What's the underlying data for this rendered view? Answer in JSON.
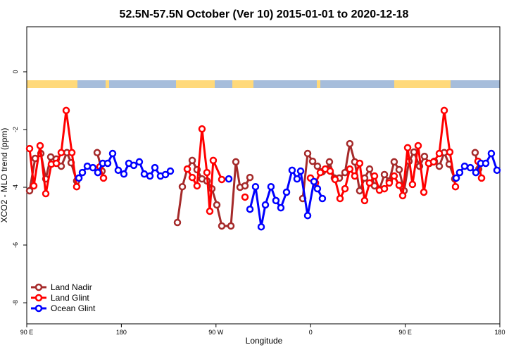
{
  "chart_data": {
    "type": "line",
    "title": "52.5N-57.5N October (Ver 10)   2015-01-01 to 2020-12-18",
    "x_label": "Longitude",
    "y_label": "XCO2 - MLO trend (ppm)",
    "xlim": [
      90,
      540
    ],
    "ylim": [
      -8.73,
      1.56
    ],
    "xticks": [
      {
        "value": 90,
        "label": "90 E"
      },
      180,
      {
        "value": 270,
        "label": "90 W"
      },
      {
        "value": 360,
        "label": "0"
      },
      {
        "value": 450,
        "label": "90 E"
      },
      {
        "value": 540,
        "label": "180"
      }
    ],
    "yticks": [
      -8,
      -6,
      -4,
      -2,
      0
    ],
    "legend": "bottom-left",
    "series": [
      {
        "name": "Land Nadir",
        "color": "#a52a2a",
        "x": [
          92.7,
          98.0,
          103.4,
          108.1,
          112.8,
          118.1,
          122.8,
          128.2,
          132.2,
          137.5,
          null,
          157.0,
          161.6,
          null,
          233.3,
          238.0,
          242.7,
          247.4,
          252.0,
          256.7,
          261.4,
          266.1,
          270.8,
          275.5,
          284.2,
          288.9,
          292.9,
          297.6,
          302.3,
          null,
          352.5,
          357.2,
          361.9,
          366.5,
          371.2,
          375.9,
          377.9,
          382.6,
          387.3,
          392.7,
          397.3,
          402.0,
          406.7,
          411.4,
          416.1,
          420.8,
          425.5,
          430.2,
          434.8,
          439.5,
          444.2,
          448.9,
          453.6,
          458.3,
          463.6,
          468.3,
          473.0,
          477.7,
          482.4,
          487.1,
          491.8,
          497.1,
          null,
          516.5,
          519.9
        ],
        "values": [
          -4.12,
          -3.0,
          -2.83,
          -3.71,
          -2.95,
          -3.02,
          -3.27,
          -2.8,
          -3.15,
          -3.78,
          null,
          -2.8,
          -3.44,
          null,
          -5.22,
          -3.98,
          -3.37,
          -3.07,
          -3.39,
          -3.71,
          -3.78,
          -4.05,
          -4.61,
          -5.34,
          -5.34,
          -3.12,
          -4.0,
          -3.95,
          -3.66,
          null,
          -4.39,
          -2.83,
          -3.1,
          -3.27,
          -3.46,
          -3.37,
          -3.12,
          -3.68,
          -3.68,
          -3.49,
          -2.49,
          -3.12,
          -4.12,
          -3.68,
          -3.37,
          -3.95,
          -4.07,
          -3.56,
          -3.78,
          -3.12,
          -3.39,
          -4.12,
          -3.1,
          -2.78,
          -3.27,
          -2.93,
          -3.17,
          -3.1,
          -3.27,
          -2.8,
          -3.2,
          -3.71,
          null,
          -2.8,
          -3.37
        ]
      },
      {
        "name": "Land Glint",
        "color": "#ff0000",
        "x": [
          92.7,
          96.7,
          102.7,
          108.1,
          113.4,
          118.1,
          122.8,
          127.5,
          132.9,
          137.5,
          null,
          159.6,
          163.0,
          null,
          242.7,
          247.4,
          252.0,
          256.7,
          261.4,
          264.1,
          267.4,
          275.5,
          null,
          297.6,
          null,
          359.9,
          364.6,
          369.2,
          373.9,
          378.6,
          383.3,
          388.0,
          392.7,
          397.3,
          402.0,
          406.7,
          411.4,
          416.1,
          420.8,
          425.5,
          430.2,
          434.8,
          439.5,
          444.2,
          447.6,
          452.3,
          456.9,
          462.3,
          467.7,
          472.3,
          477.0,
          482.4,
          487.1,
          492.4,
          497.8,
          null,
          519.2,
          522.6
        ],
        "values": [
          -2.66,
          -3.95,
          -2.56,
          -4.22,
          -3.2,
          -3.17,
          -2.8,
          -1.34,
          -2.8,
          -3.98,
          null,
          -3.29,
          -3.68,
          null,
          -3.37,
          -3.66,
          -3.95,
          -1.98,
          -3.49,
          -4.83,
          -3.07,
          -3.73,
          null,
          -4.34,
          null,
          -3.68,
          -3.85,
          -3.49,
          -3.37,
          -3.44,
          -3.73,
          -4.39,
          -4.05,
          -3.37,
          -3.61,
          -3.17,
          -4.46,
          -3.85,
          -3.61,
          -4.1,
          -4.05,
          -3.85,
          -3.61,
          -3.93,
          -4.29,
          -2.63,
          -3.9,
          -2.56,
          -4.17,
          -3.17,
          -3.12,
          -2.83,
          -1.34,
          -2.78,
          -3.98,
          null,
          -3.1,
          -3.68
        ]
      },
      {
        "name": "Ocean Glint",
        "color": "#0000ff",
        "x": [
          139.6,
          142.9,
          147.6,
          152.9,
          157.6,
          162.3,
          167.0,
          171.7,
          177.0,
          182.4,
          187.1,
          191.8,
          197.1,
          201.8,
          207.2,
          211.9,
          217.2,
          221.9,
          226.6,
          null,
          282.2,
          null,
          302.3,
          307.6,
          313.0,
          317.0,
          322.3,
          327.0,
          331.7,
          337.1,
          342.4,
          347.1,
          350.5,
          357.2,
          363.2,
          366.5,
          371.2,
          null,
          498.5,
          501.8,
          506.5,
          511.9,
          517.2,
          521.9,
          526.6,
          531.9,
          537.3
        ],
        "values": [
          -3.68,
          -3.49,
          -3.27,
          -3.32,
          -3.49,
          -3.17,
          -3.17,
          -2.83,
          -3.41,
          -3.54,
          -3.17,
          -3.24,
          -3.12,
          -3.54,
          -3.61,
          -3.32,
          -3.61,
          -3.56,
          -3.44,
          null,
          -3.71,
          null,
          -4.76,
          -3.98,
          -5.37,
          -4.61,
          -3.98,
          -4.46,
          -4.71,
          -4.17,
          -3.41,
          -3.71,
          -3.44,
          -4.98,
          -3.8,
          -4.05,
          -4.39,
          null,
          -3.68,
          -3.49,
          -3.27,
          -3.32,
          -3.49,
          -3.17,
          -3.17,
          -2.83,
          -3.41
        ]
      }
    ]
  }
}
